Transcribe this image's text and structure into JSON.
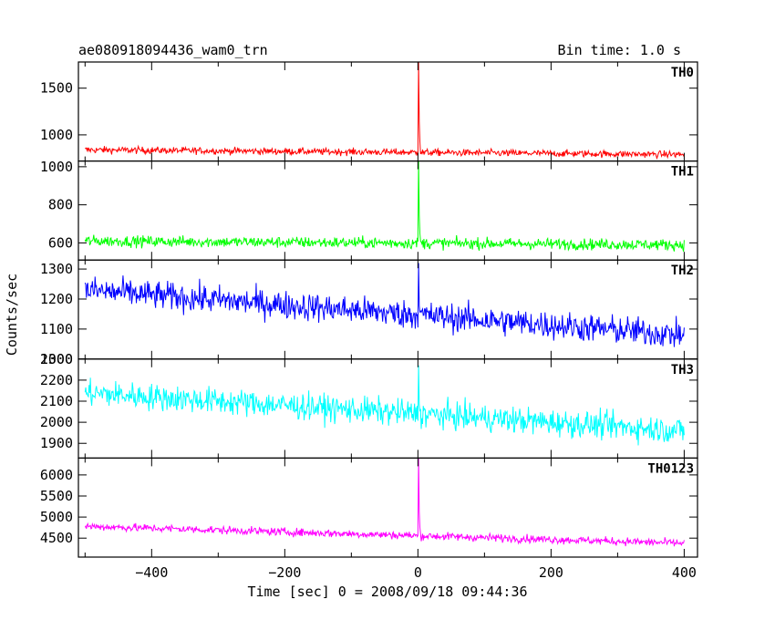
{
  "chart_data": {
    "type": "line",
    "title_left": "ae080918094436_wam0_trn",
    "title_right": "Bin time: 1.0 s",
    "xlabel": "Time [sec] 0 = 2008/09/18 09:44:36",
    "ylabel": "Counts/sec",
    "xlim": [
      -510,
      420
    ],
    "x_ticks": [
      -400,
      -200,
      0,
      200,
      400
    ],
    "bin_time_s": 1.0,
    "x_range": [
      -500,
      400
    ],
    "panels": [
      {
        "name": "TH0",
        "color": "#ff0000",
        "ylim": [
          720,
          1780
        ],
        "y_ticks": [
          1000,
          1500
        ],
        "trend": {
          "start": 840,
          "end": 790
        },
        "noise_amp": 35,
        "spike": {
          "x": 1,
          "peak": 1780
        }
      },
      {
        "name": "TH1",
        "color": "#00ff00",
        "ylim": [
          510,
          1030
        ],
        "y_ticks": [
          600,
          800,
          1000
        ],
        "trend": {
          "start": 610,
          "end": 590
        },
        "noise_amp": 28,
        "spike": {
          "x": 1,
          "peak": 1030
        }
      },
      {
        "name": "TH2",
        "color": "#0000ff",
        "ylim": [
          1000,
          1330
        ],
        "y_ticks": [
          1000,
          1100,
          1200,
          1300
        ],
        "trend": {
          "start": 1230,
          "end": 1080
        },
        "noise_amp": 45,
        "spike": {
          "x": 1,
          "peak": 1320
        }
      },
      {
        "name": "TH3",
        "color": "#00ffff",
        "ylim": [
          1830,
          2300
        ],
        "y_ticks": [
          1900,
          2000,
          2100,
          2200,
          2300
        ],
        "trend": {
          "start": 2140,
          "end": 1960
        },
        "noise_amp": 60,
        "spike": {
          "x": 1,
          "peak": 2270
        }
      },
      {
        "name": "TH0123",
        "color": "#ff00ff",
        "ylim": [
          4050,
          6400
        ],
        "y_ticks": [
          4500,
          5000,
          5500,
          6000
        ],
        "trend": {
          "start": 4780,
          "end": 4380
        },
        "noise_amp": 90,
        "spike": {
          "x": 1,
          "peak": 6400
        }
      }
    ]
  }
}
